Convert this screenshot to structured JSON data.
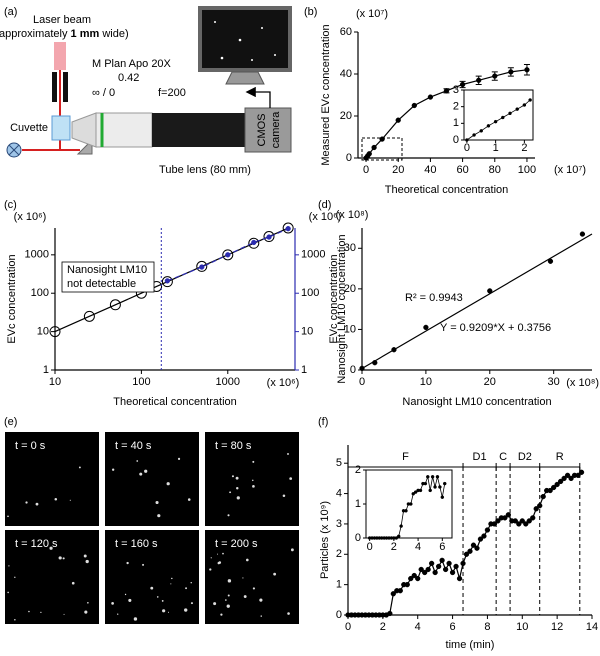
{
  "diagram": {
    "label": "(a)",
    "laser": "Laser beam",
    "laser_width": [
      "(approximately ",
      "1 mm",
      " wide)"
    ],
    "cuvette": "Cuvette",
    "objective": [
      "M Plan Apo 20X",
      "0.42",
      "∞ / 0",
      "f=200"
    ],
    "tube_lens": "Tube lens (80 mm)",
    "camera": [
      "CMOS",
      "camera"
    ]
  },
  "chart_data": [
    {
      "type": "line",
      "label": "(b)",
      "xlabel": "Theoretical concentration",
      "ylabel": "Measured EVc concentration",
      "x_multiplier": "(x 10⁷)",
      "y_multiplier": "(x 10⁷)",
      "xlim": [
        -5,
        105
      ],
      "ylim": [
        0,
        60
      ],
      "xticks": [
        0,
        20,
        40,
        60,
        80,
        100
      ],
      "yticks": [
        0,
        20,
        40,
        60
      ],
      "series": [
        {
          "color": "#000000",
          "marker": "filled",
          "x": [
            0,
            1,
            2,
            5,
            10,
            20,
            30,
            40,
            50,
            60,
            70,
            80,
            90,
            100
          ],
          "values": [
            0,
            1,
            2,
            5,
            9,
            18,
            25,
            29,
            32,
            35,
            37,
            39,
            41,
            42
          ],
          "errors": [
            null,
            null,
            null,
            null,
            null,
            null,
            null,
            null,
            1,
            1.5,
            2,
            2,
            2,
            2.5
          ]
        }
      ],
      "inset": {
        "type": "line",
        "xlim": [
          -0.1,
          2.3
        ],
        "ylim": [
          0,
          3
        ],
        "xticks": [
          0,
          1,
          2
        ],
        "yticks": [
          0,
          1,
          2,
          3
        ],
        "series": [
          {
            "color": "#000000",
            "marker": "filled",
            "x": [
              0,
              0.25,
              0.5,
              0.75,
              1,
              1.25,
              1.5,
              1.75,
              2,
              2.2
            ],
            "values": [
              0,
              0.3,
              0.55,
              0.85,
              1.1,
              1.35,
              1.6,
              1.85,
              2.1,
              2.4
            ]
          }
        ]
      }
    },
    {
      "type": "line",
      "label": "(c)",
      "xscale": "log",
      "yscale": "log",
      "xlabel": "Theoretical concentration",
      "ylabel": "EVc concentration",
      "y2label": "Nanosight LM10 concentration",
      "x_multiplier": "(x 10⁶)",
      "y_multiplier": "(x 10⁶)",
      "y2_multiplier": "(x 10⁶)",
      "y2_color": "#2b2bb0",
      "xlim": [
        10,
        6000
      ],
      "ylim": [
        1,
        5000
      ],
      "y2lim": [
        1,
        5000
      ],
      "xticks": [
        10,
        100,
        1000
      ],
      "yticks": [
        1,
        10,
        100,
        1000
      ],
      "y2ticks": [
        1,
        10,
        100,
        1000
      ],
      "threshold": 170,
      "annotation": [
        "Nanosight LM10",
        "not detectable"
      ],
      "series": [
        {
          "color": "#000000",
          "marker": "open",
          "x": [
            10,
            25,
            50,
            100,
            150,
            200,
            500,
            1000,
            2000,
            3000,
            5000
          ],
          "values": [
            10,
            25,
            50,
            100,
            150,
            200,
            500,
            1000,
            2000,
            3000,
            5000
          ]
        },
        {
          "color": "#2b2bb0",
          "marker": "filled",
          "dash": true,
          "axis": "y2",
          "x": [
            200,
            500,
            1000,
            2000,
            3000,
            5000
          ],
          "values": [
            210,
            480,
            1000,
            2100,
            2900,
            4800
          ]
        }
      ]
    },
    {
      "type": "scatter",
      "label": "(d)",
      "xlabel": "Nanosight LM10 concentration",
      "ylabel": "EVc concentration",
      "x_multiplier": "(x 10⁸)",
      "y_multiplier": "(x 10⁸)",
      "xlim": [
        0,
        36
      ],
      "ylim": [
        0,
        35
      ],
      "xticks": [
        0,
        10,
        20,
        30
      ],
      "yticks": [
        0,
        10,
        20,
        30
      ],
      "fit": {
        "slope": 0.9209,
        "intercept": 0.3756
      },
      "annotations": [
        "R² = 0.9943",
        "Y = 0.9209*X + 0.3756"
      ],
      "series": [
        {
          "color": "#000000",
          "marker": "filled",
          "x": [
            0,
            2,
            5,
            10,
            20,
            29.5,
            34.5
          ],
          "values": [
            0.4,
            1.8,
            5,
            10.5,
            19.5,
            26.8,
            33.5
          ]
        }
      ]
    },
    {
      "type": "line",
      "label": "(f)",
      "xlabel": "time (min)",
      "ylabel": "Particles (x 10⁹)",
      "xlim": [
        0,
        14
      ],
      "ylim": [
        0,
        5.6
      ],
      "xticks": [
        0,
        2,
        4,
        6,
        8,
        10,
        12,
        14
      ],
      "yticks": [
        0,
        1,
        2,
        3,
        4,
        5
      ],
      "segments": [
        {
          "label": "F",
          "start": 0,
          "end": 6.6
        },
        {
          "label": "D1",
          "start": 6.6,
          "end": 8.5
        },
        {
          "label": "C",
          "start": 8.5,
          "end": 9.3
        },
        {
          "label": "D2",
          "start": 9.3,
          "end": 11
        },
        {
          "label": "R",
          "start": 11,
          "end": 13.3
        }
      ],
      "series": [
        {
          "color": "#000000",
          "marker": "filled",
          "x": [
            0,
            0.2,
            0.4,
            0.6,
            0.8,
            1,
            1.2,
            1.4,
            1.6,
            1.8,
            2,
            2.2,
            2.4,
            2.6,
            2.8,
            3,
            3.2,
            3.4,
            3.6,
            3.8,
            4,
            4.2,
            4.4,
            4.6,
            4.8,
            5,
            5.2,
            5.4,
            5.6,
            5.8,
            6,
            6.2,
            6.4,
            6.6,
            6.8,
            7,
            7.2,
            7.4,
            7.6,
            7.8,
            8,
            8.2,
            8.4,
            8.6,
            8.8,
            9,
            9.2,
            9.4,
            9.6,
            9.8,
            10,
            10.2,
            10.4,
            10.6,
            10.8,
            11,
            11.2,
            11.4,
            11.6,
            11.8,
            12,
            12.2,
            12.4,
            12.6,
            12.8,
            13,
            13.2,
            13.4
          ],
          "values": [
            0,
            0,
            0,
            0,
            0,
            0,
            0,
            0,
            0,
            0,
            0,
            0,
            0.05,
            0.7,
            0.8,
            0.8,
            1.0,
            1.0,
            1.2,
            1.3,
            1.2,
            1.5,
            1.4,
            1.5,
            1.7,
            1.4,
            1.6,
            1.8,
            1.5,
            1.7,
            1.4,
            1.6,
            1.2,
            1.7,
            2.0,
            2.1,
            2.3,
            2.2,
            2.5,
            2.6,
            2.8,
            3.0,
            3.0,
            3.1,
            3.2,
            3.2,
            3.3,
            3.1,
            3.1,
            3.0,
            3.1,
            3.0,
            3.1,
            3.2,
            3.5,
            3.6,
            3.9,
            4.1,
            4.1,
            4.2,
            4.3,
            4.4,
            4.5,
            4.6,
            4.5,
            4.6,
            4.6,
            4.7
          ]
        }
      ],
      "inset": {
        "type": "line",
        "xlim": [
          -0.3,
          6.8
        ],
        "ylim": [
          0,
          2
        ],
        "xticks": [
          0,
          2,
          4,
          6
        ],
        "yticks": [
          0,
          1,
          2
        ],
        "series": [
          {
            "color": "#000000",
            "marker": "filled",
            "x": [
              0,
              0.2,
              0.4,
              0.6,
              0.8,
              1,
              1.2,
              1.4,
              1.6,
              1.8,
              2,
              2.2,
              2.4,
              2.6,
              2.8,
              3,
              3.2,
              3.4,
              3.6,
              3.8,
              4,
              4.2,
              4.4,
              4.6,
              4.8,
              5,
              5.2,
              5.4,
              5.6,
              5.8,
              6,
              6.2
            ],
            "values": [
              0,
              0,
              0,
              0,
              0,
              0,
              0,
              0,
              0,
              0,
              0,
              0,
              0.05,
              0.35,
              0.8,
              0.8,
              1.0,
              1.0,
              1.3,
              1.35,
              1.4,
              1.4,
              1.6,
              1.6,
              1.8,
              1.4,
              1.8,
              1.5,
              1.8,
              1.5,
              1.2,
              1.6
            ]
          }
        ]
      }
    }
  ],
  "images": {
    "label": "(e)",
    "frames": [
      "t = 0 s",
      "t = 40 s",
      "t = 80 s",
      "t = 120 s",
      "t = 160 s",
      "t = 200 s"
    ]
  }
}
